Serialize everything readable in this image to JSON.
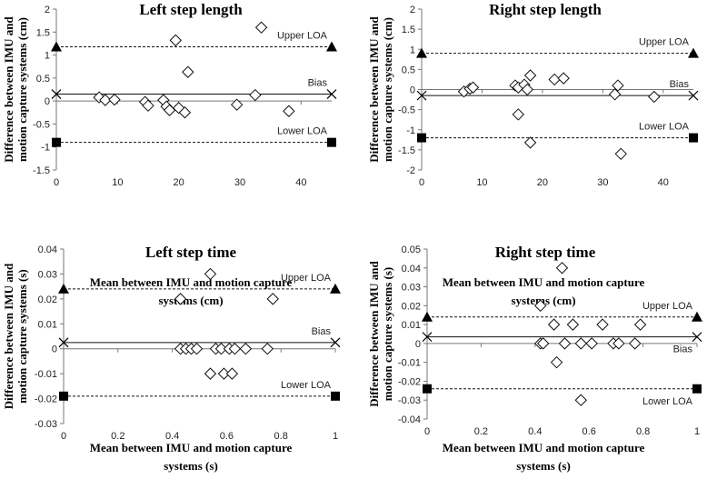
{
  "chart_data": [
    {
      "type": "scatter",
      "title": "Left step length",
      "xlabel": [
        "Mean between IMU and motion capture",
        "systems (cm)"
      ],
      "ylabel": [
        "Difference between IMU and",
        "motion capture systems (cm)"
      ],
      "xlim": [
        0,
        45
      ],
      "ylim": [
        -1.5,
        2
      ],
      "xticks": [
        0,
        10,
        20,
        30,
        40
      ],
      "yticks": [
        -1.5,
        -1,
        -0.5,
        0,
        0.5,
        1,
        1.5,
        2
      ],
      "ytick_labels": [
        "-1.5",
        "-1",
        "-0.5",
        "0",
        "0.5",
        "1",
        "1.5",
        "2"
      ],
      "upper_loa": 1.18,
      "bias": 0.15,
      "lower_loa": -0.9,
      "labels": {
        "upper": "Upper LOA",
        "bias": "Bias",
        "lower": "Lower LOA"
      },
      "label_place": {
        "upper": "above",
        "bias": "above",
        "lower": "above"
      },
      "points": [
        [
          7,
          0.08
        ],
        [
          8,
          0.02
        ],
        [
          9.5,
          0.03
        ],
        [
          14.5,
          -0.02
        ],
        [
          15,
          -0.1
        ],
        [
          17.5,
          0.02
        ],
        [
          18,
          -0.12
        ],
        [
          18.5,
          -0.2
        ],
        [
          19.5,
          1.32
        ],
        [
          20,
          -0.15
        ],
        [
          21,
          -0.25
        ],
        [
          21.5,
          0.63
        ],
        [
          29.5,
          -0.08
        ],
        [
          32.5,
          0.13
        ],
        [
          33.5,
          1.6
        ],
        [
          38,
          -0.22
        ]
      ]
    },
    {
      "type": "scatter",
      "title": "Right step length",
      "xlabel": [
        "Mean between IMU and motion capture",
        "systems (cm)"
      ],
      "ylabel": [
        "Difference between IMU and",
        "motion capture systems (cm)"
      ],
      "xlim": [
        0,
        45
      ],
      "ylim": [
        -2,
        2
      ],
      "xticks": [
        0,
        10,
        20,
        30,
        40
      ],
      "yticks": [
        -2,
        -1.5,
        -1,
        -0.5,
        0,
        0.5,
        1,
        1.5,
        2
      ],
      "ytick_labels": [
        "-2",
        "-1.5",
        "-1",
        "-0.5",
        "0",
        "0.5",
        "1",
        "1.5",
        "2"
      ],
      "upper_loa": 0.9,
      "bias": -0.15,
      "lower_loa": -1.2,
      "labels": {
        "upper": "Upper LOA",
        "bias": "Bias",
        "lower": "Lower LOA"
      },
      "label_place": {
        "upper": "above",
        "bias": "above",
        "lower": "above"
      },
      "points": [
        [
          7,
          -0.05
        ],
        [
          8,
          0.02
        ],
        [
          8.5,
          0.05
        ],
        [
          15.5,
          0.1
        ],
        [
          16,
          0.05
        ],
        [
          16,
          -0.62
        ],
        [
          17,
          0.12
        ],
        [
          17.5,
          0
        ],
        [
          18,
          0.35
        ],
        [
          18,
          -1.32
        ],
        [
          22,
          0.25
        ],
        [
          23.5,
          0.28
        ],
        [
          32,
          -0.12
        ],
        [
          32.5,
          0.1
        ],
        [
          33,
          -1.6
        ],
        [
          38.5,
          -0.18
        ]
      ]
    },
    {
      "type": "scatter",
      "title": "Left step time",
      "xlabel": [
        "Mean between IMU and motion capture",
        "systems (s)"
      ],
      "ylabel": [
        "Difference between IMU and",
        "motion capture systems (s)"
      ],
      "xlim": [
        0,
        1
      ],
      "ylim": [
        -0.03,
        0.04
      ],
      "xticks": [
        0,
        0.2,
        0.4,
        0.6,
        0.8,
        1
      ],
      "yticks": [
        -0.03,
        -0.02,
        -0.01,
        0,
        0.01,
        0.02,
        0.03,
        0.04
      ],
      "ytick_labels": [
        "-0.03",
        "-0.02",
        "-0.01",
        "0",
        "0.01",
        "0.02",
        "0.03",
        "0.04"
      ],
      "upper_loa": 0.024,
      "bias": 0.0025,
      "lower_loa": -0.019,
      "labels": {
        "upper": "Upper LOA",
        "bias": "Bias",
        "lower": "Lower LOA"
      },
      "label_place": {
        "upper": "above",
        "bias": "above",
        "lower": "above"
      },
      "points": [
        [
          0.43,
          0.02
        ],
        [
          0.43,
          0
        ],
        [
          0.45,
          0
        ],
        [
          0.47,
          0
        ],
        [
          0.49,
          0
        ],
        [
          0.54,
          0.03
        ],
        [
          0.54,
          -0.01
        ],
        [
          0.56,
          0
        ],
        [
          0.58,
          0
        ],
        [
          0.59,
          -0.01
        ],
        [
          0.61,
          0
        ],
        [
          0.62,
          -0.01
        ],
        [
          0.63,
          0
        ],
        [
          0.67,
          0
        ],
        [
          0.75,
          0
        ],
        [
          0.77,
          0.02
        ]
      ]
    },
    {
      "type": "scatter",
      "title": "Right step time",
      "xlabel": [
        "Mean between IMU and motion capture",
        "systems (s)"
      ],
      "ylabel": [
        "Difference between IMU and",
        "motion capture systems (s)"
      ],
      "xlim": [
        0,
        1
      ],
      "ylim": [
        -0.04,
        0.05
      ],
      "xticks": [
        0,
        0.2,
        0.4,
        0.6,
        0.8,
        1
      ],
      "yticks": [
        -0.04,
        -0.03,
        -0.02,
        -0.01,
        0,
        0.01,
        0.02,
        0.03,
        0.04,
        0.05
      ],
      "ytick_labels": [
        "-0.04",
        "-0.03",
        "-0.02",
        "-0.01",
        "0",
        "0.01",
        "0.02",
        "0.03",
        "0.04",
        "0.05"
      ],
      "upper_loa": 0.014,
      "bias": 0.0035,
      "lower_loa": -0.024,
      "labels": {
        "upper": "Upper LOA",
        "bias": "Bias",
        "lower": "Lower LOA"
      },
      "label_place": {
        "upper": "above",
        "bias": "below",
        "lower": "below"
      },
      "points": [
        [
          0.42,
          0.02
        ],
        [
          0.42,
          0
        ],
        [
          0.43,
          0
        ],
        [
          0.47,
          0.01
        ],
        [
          0.48,
          -0.01
        ],
        [
          0.5,
          0.04
        ],
        [
          0.51,
          0
        ],
        [
          0.54,
          0.01
        ],
        [
          0.57,
          -0.03
        ],
        [
          0.57,
          0
        ],
        [
          0.61,
          0
        ],
        [
          0.65,
          0.01
        ],
        [
          0.69,
          0
        ],
        [
          0.71,
          0
        ],
        [
          0.77,
          0
        ],
        [
          0.79,
          0.01
        ]
      ]
    }
  ]
}
